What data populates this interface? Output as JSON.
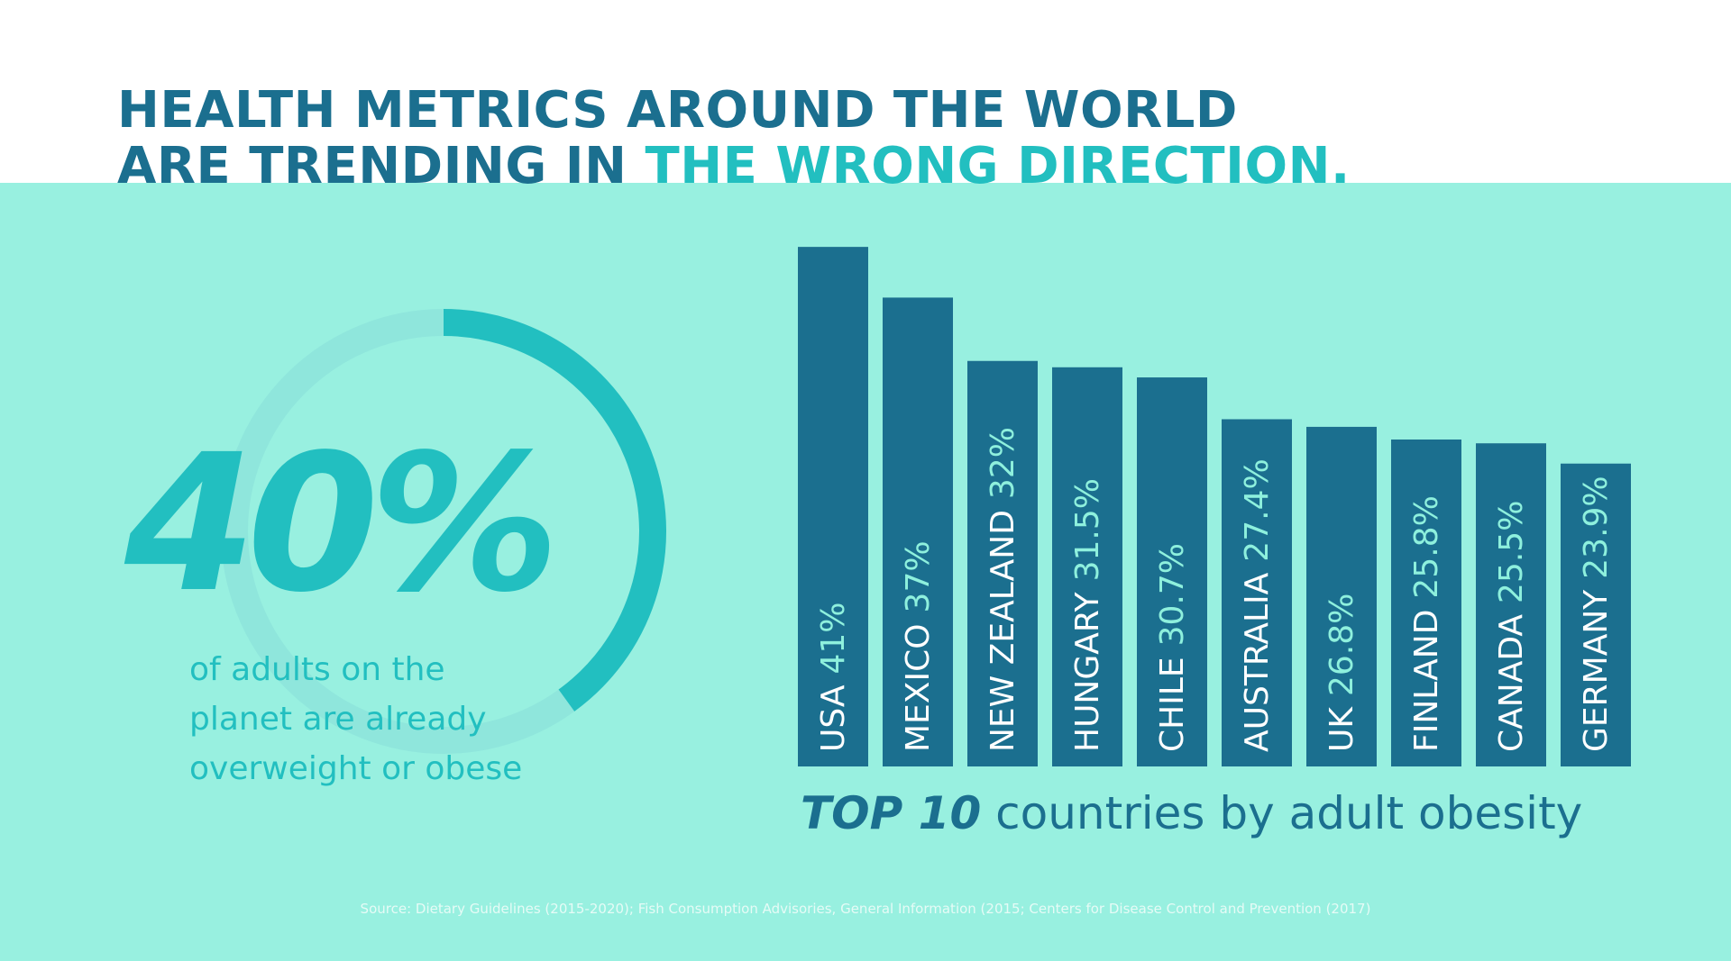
{
  "headline": {
    "line1": "HEALTH METRICS AROUND THE WORLD",
    "line2_prefix": "ARE TRENDING IN ",
    "line2_highlight": "THE WRONG DIRECTION."
  },
  "stat": {
    "value": "40%",
    "fraction": 0.4,
    "caption_line1": "of adults on the",
    "caption_line2": "planet are already",
    "caption_line3": "overweight or obese"
  },
  "chart_data": {
    "type": "bar",
    "title_emphasis": "TOP 10",
    "title_rest": " countries by adult obesity",
    "categories": [
      "USA",
      "MEXICO",
      "NEW ZEALAND",
      "HUNGARY",
      "CHILE",
      "AUSTRALIA",
      "UK",
      "FINLAND",
      "CANADA",
      "GERMANY"
    ],
    "values": [
      41,
      37,
      32,
      31.5,
      30.7,
      27.4,
      26.8,
      25.8,
      25.5,
      23.9
    ],
    "value_labels": [
      "41%",
      "37%",
      "32%",
      "31.5%",
      "30.7%",
      "27.4%",
      "26.8%",
      "25.8%",
      "25.5%",
      "23.9%"
    ],
    "unit": "%"
  },
  "source": "Source: Dietary Guidelines (2015-2020); Fish Consumption Advisories, General Information (2015; Centers for Disease Control and Prevention (2017)",
  "colors": {
    "panel": "#98f0e0",
    "dark_blue": "#1b6f8f",
    "teal": "#22bfc0",
    "ring_track": "#8fe6dc",
    "bar_value_text": "#8ef0dd"
  }
}
